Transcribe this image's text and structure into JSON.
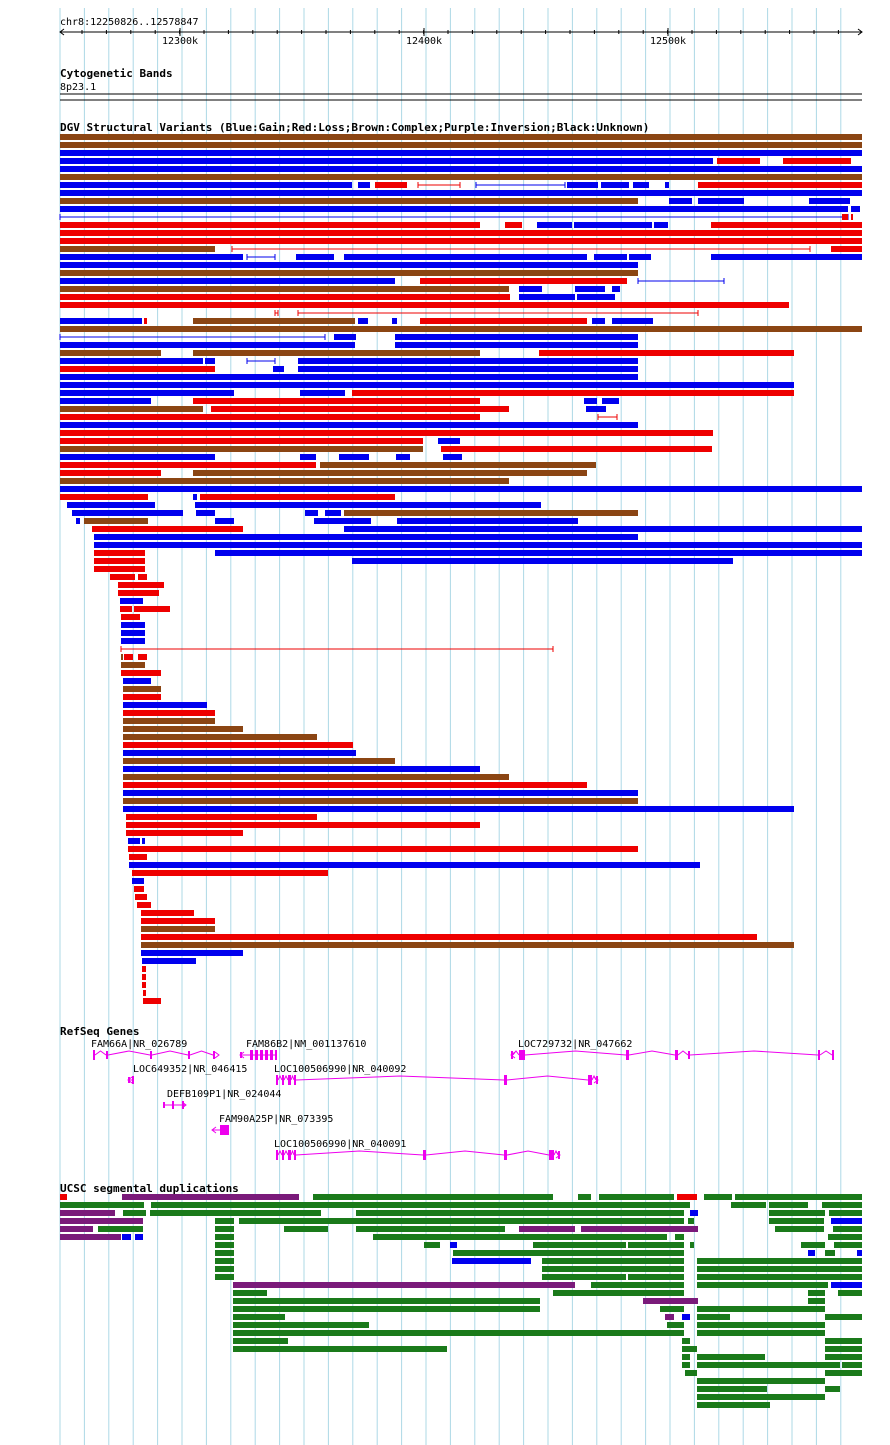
{
  "ruler": {
    "region": "chr8:12250826..12578847",
    "ticks": [
      "12300k",
      "12400k",
      "12500k"
    ]
  },
  "tracks": {
    "cytoband": {
      "title": "Cytogenetic Bands",
      "band": "8p23.1"
    },
    "dgv": {
      "title": "DGV Structural Variants (Blue:Gain;Red:Loss;Brown:Complex;Purple:Inversion;Black:Unknown)"
    },
    "refseq": {
      "title": "RefSeq Genes"
    },
    "segdup": {
      "title": "UCSC segmental duplications"
    }
  },
  "genes": [
    {
      "label": "FAM66A|NR_026789",
      "dir": "right"
    },
    {
      "label": "FAM86B2|NM_001137610",
      "dir": "left"
    },
    {
      "label": "LOC729732|NR_047662",
      "dir": "left"
    },
    {
      "label": "LOC649352|NR_046415",
      "dir": "left"
    },
    {
      "label": "LOC100506990|NR_040092",
      "dir": "right"
    },
    {
      "label": "DEFB109P1|NR_024044",
      "dir": "right"
    },
    {
      "label": "FAM90A25P|NR_073395",
      "dir": "left"
    },
    {
      "label": "LOC100506990|NR_040091",
      "dir": "right"
    }
  ],
  "colors": {
    "gain": "#0000ee",
    "loss": "#ee0000",
    "complex": "#8b4513",
    "gene": "#ee00ee",
    "segdup_green": "#1a7a1a",
    "segdup_purple": "#7a1a7a",
    "grid": "#add8e6"
  }
}
